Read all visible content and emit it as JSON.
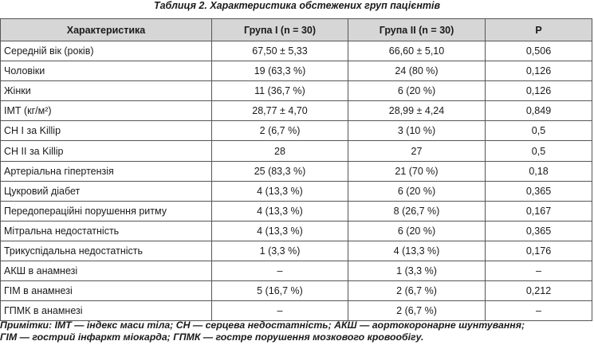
{
  "caption": "Таблиця 2. Характеристика обстежених груп пацієнтів",
  "columns": [
    "Характеристика",
    "Група І (n = 30)",
    "Група ІІ (n = 30)",
    "Р"
  ],
  "rows": [
    [
      "Середній вік (років)",
      "67,50 ± 5,33",
      "66,60 ± 5,10",
      "0,506"
    ],
    [
      "Чоловіки",
      "19 (63,3 %)",
      "24 (80 %)",
      "0,126"
    ],
    [
      "Жінки",
      "11 (36,7 %)",
      "6 (20 %)",
      "0,126"
    ],
    [
      "ІМТ (кг/м²)",
      "28,77 ± 4,70",
      "28,99 ± 4,24",
      "0,849"
    ],
    [
      "СН І за Killip",
      "2 (6,7 %)",
      "3 (10 %)",
      "0,5"
    ],
    [
      "СН ІІ за Killip",
      "28",
      "27",
      "0,5"
    ],
    [
      "Артеріальна гіпертензія",
      "25 (83,3 %)",
      "21 (70 %)",
      "0,18"
    ],
    [
      "Цукровий діабет",
      "4 (13,3 %)",
      "6 (20 %)",
      "0,365"
    ],
    [
      "Передопераційні порушення ритму",
      "4 (13,3 %)",
      "8 (26,7 %)",
      "0,167"
    ],
    [
      "Мітральна недостатність",
      "4 (13,3 %)",
      "6 (20 %)",
      "0,365"
    ],
    [
      "Трикуспідальна недостатність",
      "1 (3,3 %)",
      "4 (13,3 %)",
      "0,176"
    ],
    [
      "АКШ в анамнезі",
      "–",
      "1 (3,3 %)",
      "–"
    ],
    [
      "ГІМ в анамнезі",
      "5 (16,7 %)",
      "2 (6,7 %)",
      "0,212"
    ],
    [
      "ГПМК в анамнезі",
      "–",
      "2 (6,7 %)",
      "–"
    ]
  ],
  "notes": [
    "Примітки: ІМТ — індекс маси тіла; СН — серцева недостатність; АКШ — аортокоронарне шунтування;",
    "ГІМ — гострий інфаркт міокарда; ГПМК — гостре порушення мозкового кровообігу."
  ]
}
